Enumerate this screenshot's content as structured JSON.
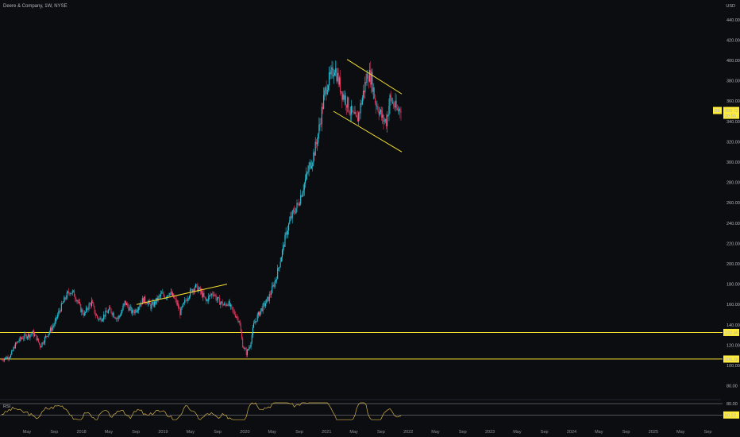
{
  "header": {
    "title": "Deere & Company, 1W, NYSE",
    "currency": "USD"
  },
  "colors": {
    "background": "#0c0d11",
    "up": "#26c6da",
    "down": "#e0345a",
    "drawing": "#f5e12e",
    "rsi": "#d4b24a",
    "axis_text": "#b2b5be"
  },
  "chart_data": {
    "type": "candlestick",
    "title": "Deere & Company, 1W, NYSE",
    "price_axis": {
      "ticks": [
        "440.00",
        "420.00",
        "400.00",
        "380.00",
        "360.00",
        "340.00",
        "320.00",
        "300.00",
        "280.00",
        "260.00",
        "240.00",
        "220.00",
        "200.00",
        "180.00",
        "160.00",
        "140.00",
        "120.00",
        "100.00",
        "80.00"
      ],
      "ylim": [
        70,
        450
      ]
    },
    "time_axis": {
      "labels": [
        "May",
        "Sep",
        "2018",
        "May",
        "Sep",
        "2019",
        "May",
        "Sep",
        "2020",
        "May",
        "Sep",
        "2021",
        "May",
        "Sep",
        "2022",
        "May",
        "Sep",
        "2023",
        "May",
        "Sep",
        "2024",
        "May",
        "Sep",
        "2025",
        "May",
        "Sep"
      ]
    },
    "last_price": {
      "symbol": "DE",
      "value": "350.72",
      "sub": "3d 5h"
    },
    "horizontal_levels": [
      {
        "value": 132.46,
        "label": "132.46"
      },
      {
        "value": 106.3,
        "label": "106.30"
      }
    ],
    "trendlines": [
      {
        "name": "rising wedge top",
        "from": [
          "2018-10",
          160
        ],
        "to": [
          "2019-12",
          180
        ]
      },
      {
        "name": "channel upper",
        "from": [
          "2021-05",
          401
        ],
        "to": [
          "2022-01",
          367
        ]
      },
      {
        "name": "channel lower",
        "from": [
          "2021-03",
          350
        ],
        "to": [
          "2022-01",
          310
        ]
      }
    ],
    "price_path": [
      [
        0,
        106
      ],
      [
        6,
        108
      ],
      [
        10,
        110
      ],
      [
        14,
        119
      ],
      [
        18,
        124
      ],
      [
        22,
        127
      ],
      [
        26,
        129
      ],
      [
        30,
        130
      ],
      [
        34,
        132
      ],
      [
        38,
        127
      ],
      [
        42,
        119
      ],
      [
        46,
        125
      ],
      [
        50,
        131
      ],
      [
        54,
        136
      ],
      [
        58,
        142
      ],
      [
        62,
        152
      ],
      [
        66,
        160
      ],
      [
        70,
        168
      ],
      [
        74,
        173
      ],
      [
        78,
        171
      ],
      [
        82,
        165
      ],
      [
        86,
        155
      ],
      [
        90,
        150
      ],
      [
        94,
        158
      ],
      [
        98,
        162
      ],
      [
        102,
        150
      ],
      [
        106,
        145
      ],
      [
        110,
        148
      ],
      [
        114,
        152
      ],
      [
        118,
        155
      ],
      [
        122,
        150
      ],
      [
        126,
        146
      ],
      [
        130,
        152
      ],
      [
        134,
        162
      ],
      [
        138,
        157
      ],
      [
        142,
        152
      ],
      [
        146,
        155
      ],
      [
        150,
        160
      ],
      [
        154,
        165
      ],
      [
        158,
        163
      ],
      [
        162,
        158
      ],
      [
        166,
        161
      ],
      [
        170,
        166
      ],
      [
        174,
        170
      ],
      [
        178,
        168
      ],
      [
        182,
        172
      ],
      [
        186,
        168
      ],
      [
        190,
        162
      ],
      [
        194,
        152
      ],
      [
        198,
        160
      ],
      [
        202,
        168
      ],
      [
        206,
        173
      ],
      [
        210,
        178
      ],
      [
        214,
        175
      ],
      [
        218,
        170
      ],
      [
        222,
        163
      ],
      [
        226,
        168
      ],
      [
        230,
        172
      ],
      [
        234,
        165
      ],
      [
        238,
        162
      ],
      [
        242,
        159
      ],
      [
        246,
        162
      ],
      [
        250,
        155
      ],
      [
        254,
        150
      ],
      [
        258,
        145
      ],
      [
        262,
        120
      ],
      [
        266,
        112
      ],
      [
        270,
        120
      ],
      [
        274,
        140
      ],
      [
        278,
        148
      ],
      [
        282,
        155
      ],
      [
        286,
        160
      ],
      [
        290,
        166
      ],
      [
        294,
        175
      ],
      [
        298,
        185
      ],
      [
        302,
        200
      ],
      [
        306,
        216
      ],
      [
        310,
        232
      ],
      [
        314,
        244
      ],
      [
        318,
        252
      ],
      [
        322,
        258
      ],
      [
        326,
        270
      ],
      [
        330,
        282
      ],
      [
        334,
        294
      ],
      [
        338,
        304
      ],
      [
        342,
        318
      ],
      [
        346,
        338
      ],
      [
        350,
        362
      ],
      [
        354,
        378
      ],
      [
        358,
        384
      ],
      [
        362,
        394
      ],
      [
        366,
        380
      ],
      [
        370,
        368
      ],
      [
        374,
        362
      ],
      [
        378,
        352
      ],
      [
        382,
        345
      ],
      [
        386,
        340
      ],
      [
        390,
        355
      ],
      [
        394,
        372
      ],
      [
        398,
        388
      ],
      [
        402,
        382
      ],
      [
        406,
        360
      ],
      [
        410,
        352
      ],
      [
        414,
        342
      ],
      [
        418,
        340
      ],
      [
        422,
        362
      ],
      [
        426,
        357
      ],
      [
        430,
        350
      ],
      [
        434,
        354
      ]
    ],
    "rsi": {
      "label": "RSI",
      "ticks": [
        "80.00"
      ],
      "current": "50.23"
    }
  }
}
